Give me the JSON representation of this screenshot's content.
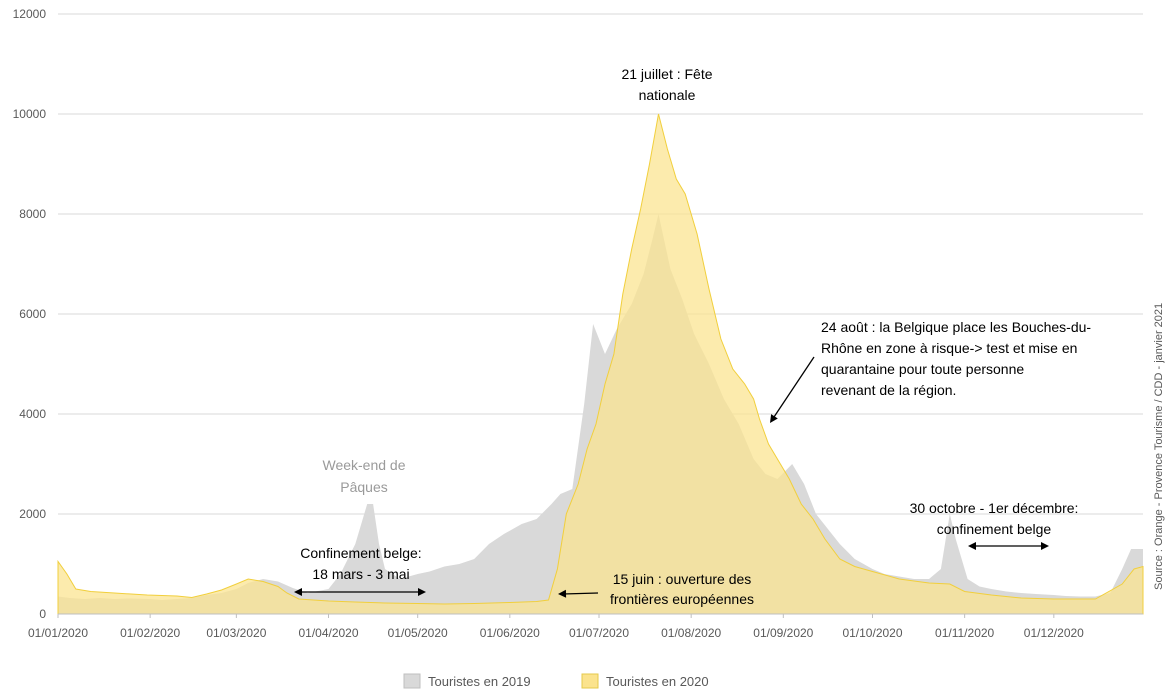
{
  "chart_data": {
    "type": "area",
    "yticks": [
      "0",
      "2000",
      "4000",
      "6000",
      "8000",
      "10000",
      "12000"
    ],
    "ylim": [
      0,
      12000
    ],
    "xlabels": [
      "01/01/2020",
      "01/02/2020",
      "01/03/2020",
      "01/04/2020",
      "01/05/2020",
      "01/06/2020",
      "01/07/2020",
      "01/08/2020",
      "01/09/2020",
      "01/10/2020",
      "01/11/2020",
      "01/12/2020"
    ],
    "grid": true,
    "legend_position": "bottom",
    "series": [
      {
        "name": "Touristes en 2019",
        "color": "#d9d9d9",
        "points": [
          [
            "01/01",
            350
          ],
          [
            "05/01",
            320
          ],
          [
            "10/01",
            300
          ],
          [
            "15/01",
            320
          ],
          [
            "20/01",
            300
          ],
          [
            "25/01",
            310
          ],
          [
            "01/02",
            300
          ],
          [
            "05/02",
            280
          ],
          [
            "10/02",
            300
          ],
          [
            "15/02",
            320
          ],
          [
            "20/02",
            380
          ],
          [
            "25/02",
            420
          ],
          [
            "01/03",
            500
          ],
          [
            "05/03",
            620
          ],
          [
            "10/03",
            700
          ],
          [
            "15/03",
            650
          ],
          [
            "20/03",
            520
          ],
          [
            "25/03",
            420
          ],
          [
            "01/04",
            500
          ],
          [
            "05/04",
            800
          ],
          [
            "10/04",
            1400
          ],
          [
            "14/04",
            2200
          ],
          [
            "16/04",
            2200
          ],
          [
            "18/04",
            1400
          ],
          [
            "20/04",
            900
          ],
          [
            "25/04",
            700
          ],
          [
            "01/05",
            800
          ],
          [
            "05/05",
            850
          ],
          [
            "10/05",
            950
          ],
          [
            "15/05",
            1000
          ],
          [
            "20/05",
            1100
          ],
          [
            "25/05",
            1400
          ],
          [
            "30/05",
            1600
          ],
          [
            "05/06",
            1800
          ],
          [
            "10/06",
            1900
          ],
          [
            "15/06",
            2200
          ],
          [
            "18/06",
            2400
          ],
          [
            "22/06",
            2500
          ],
          [
            "26/06",
            4200
          ],
          [
            "29/06",
            5800
          ],
          [
            "03/07",
            5200
          ],
          [
            "07/07",
            5700
          ],
          [
            "12/07",
            6200
          ],
          [
            "16/07",
            6800
          ],
          [
            "19/07",
            7500
          ],
          [
            "21/07",
            8000
          ],
          [
            "25/07",
            6900
          ],
          [
            "29/07",
            6300
          ],
          [
            "02/08",
            5600
          ],
          [
            "07/08",
            5000
          ],
          [
            "12/08",
            4300
          ],
          [
            "17/08",
            3800
          ],
          [
            "22/08",
            3100
          ],
          [
            "26/08",
            2800
          ],
          [
            "30/08",
            2700
          ],
          [
            "04/09",
            3000
          ],
          [
            "08/09",
            2600
          ],
          [
            "12/09",
            2000
          ],
          [
            "16/09",
            1700
          ],
          [
            "20/09",
            1400
          ],
          [
            "25/09",
            1100
          ],
          [
            "01/10",
            900
          ],
          [
            "05/10",
            800
          ],
          [
            "10/10",
            750
          ],
          [
            "15/10",
            700
          ],
          [
            "20/10",
            700
          ],
          [
            "24/10",
            900
          ],
          [
            "27/10",
            2000
          ],
          [
            "29/10",
            1500
          ],
          [
            "02/11",
            700
          ],
          [
            "06/11",
            550
          ],
          [
            "10/11",
            500
          ],
          [
            "15/11",
            450
          ],
          [
            "20/11",
            420
          ],
          [
            "25/11",
            400
          ],
          [
            "01/12",
            380
          ],
          [
            "05/12",
            360
          ],
          [
            "10/12",
            350
          ],
          [
            "15/12",
            350
          ],
          [
            "20/12",
            420
          ],
          [
            "24/12",
            900
          ],
          [
            "27/12",
            1300
          ],
          [
            "31/12",
            1300
          ]
        ]
      },
      {
        "name": "Touristes en 2020",
        "color": "#fbe38d",
        "points": [
          [
            "01/01",
            1050
          ],
          [
            "04/01",
            800
          ],
          [
            "07/01",
            500
          ],
          [
            "12/01",
            450
          ],
          [
            "20/01",
            420
          ],
          [
            "31/01",
            380
          ],
          [
            "05/02",
            370
          ],
          [
            "10/02",
            360
          ],
          [
            "15/02",
            330
          ],
          [
            "20/02",
            400
          ],
          [
            "25/02",
            480
          ],
          [
            "01/03",
            600
          ],
          [
            "05/03",
            700
          ],
          [
            "10/03",
            650
          ],
          [
            "15/03",
            550
          ],
          [
            "18/03",
            420
          ],
          [
            "22/03",
            300
          ],
          [
            "01/04",
            260
          ],
          [
            "10/04",
            240
          ],
          [
            "20/04",
            220
          ],
          [
            "01/05",
            210
          ],
          [
            "10/05",
            200
          ],
          [
            "20/05",
            210
          ],
          [
            "01/06",
            230
          ],
          [
            "10/06",
            250
          ],
          [
            "14/06",
            280
          ],
          [
            "17/06",
            900
          ],
          [
            "20/06",
            2000
          ],
          [
            "24/06",
            2600
          ],
          [
            "27/06",
            3300
          ],
          [
            "30/06",
            3800
          ],
          [
            "03/07",
            4600
          ],
          [
            "06/07",
            5200
          ],
          [
            "09/07",
            6400
          ],
          [
            "12/07",
            7300
          ],
          [
            "15/07",
            8100
          ],
          [
            "18/07",
            9000
          ],
          [
            "21/07",
            10000
          ],
          [
            "24/07",
            9300
          ],
          [
            "27/07",
            8700
          ],
          [
            "30/07",
            8400
          ],
          [
            "03/08",
            7600
          ],
          [
            "07/08",
            6500
          ],
          [
            "11/08",
            5500
          ],
          [
            "15/08",
            4900
          ],
          [
            "19/08",
            4600
          ],
          [
            "22/08",
            4300
          ],
          [
            "24/08",
            3900
          ],
          [
            "27/08",
            3400
          ],
          [
            "30/08",
            3100
          ],
          [
            "03/09",
            2700
          ],
          [
            "07/09",
            2200
          ],
          [
            "11/09",
            1900
          ],
          [
            "15/09",
            1500
          ],
          [
            "20/09",
            1100
          ],
          [
            "25/09",
            950
          ],
          [
            "01/10",
            850
          ],
          [
            "10/10",
            700
          ],
          [
            "20/10",
            620
          ],
          [
            "27/10",
            600
          ],
          [
            "01/11",
            450
          ],
          [
            "10/11",
            380
          ],
          [
            "20/11",
            320
          ],
          [
            "01/12",
            300
          ],
          [
            "15/12",
            300
          ],
          [
            "24/12",
            600
          ],
          [
            "28/12",
            900
          ],
          [
            "31/12",
            950
          ]
        ]
      }
    ],
    "annotations": [
      {
        "id": "fete",
        "lines": [
          "21 juillet : Fête",
          "nationale"
        ]
      },
      {
        "id": "paques",
        "lines": [
          "Week-end de",
          "Pâques"
        ]
      },
      {
        "id": "confinement1",
        "lines": [
          "Confinement belge:",
          "18 mars - 3 mai"
        ]
      },
      {
        "id": "frontieres",
        "lines": [
          "15 juin : ouverture des",
          "frontières européennes"
        ]
      },
      {
        "id": "belgique",
        "lines": [
          "24 août : la Belgique place les Bouches-du-",
          "Rhône en zone à risque-> test et  mise en",
          "quarantaine pour toute personne",
          "revenant de la région."
        ]
      },
      {
        "id": "confinement2",
        "lines": [
          "30 octobre - 1er décembre:",
          "confinement belge"
        ]
      }
    ],
    "source": "Source : Orange - Provence Tourisme  / CDD - janvier 2021"
  }
}
